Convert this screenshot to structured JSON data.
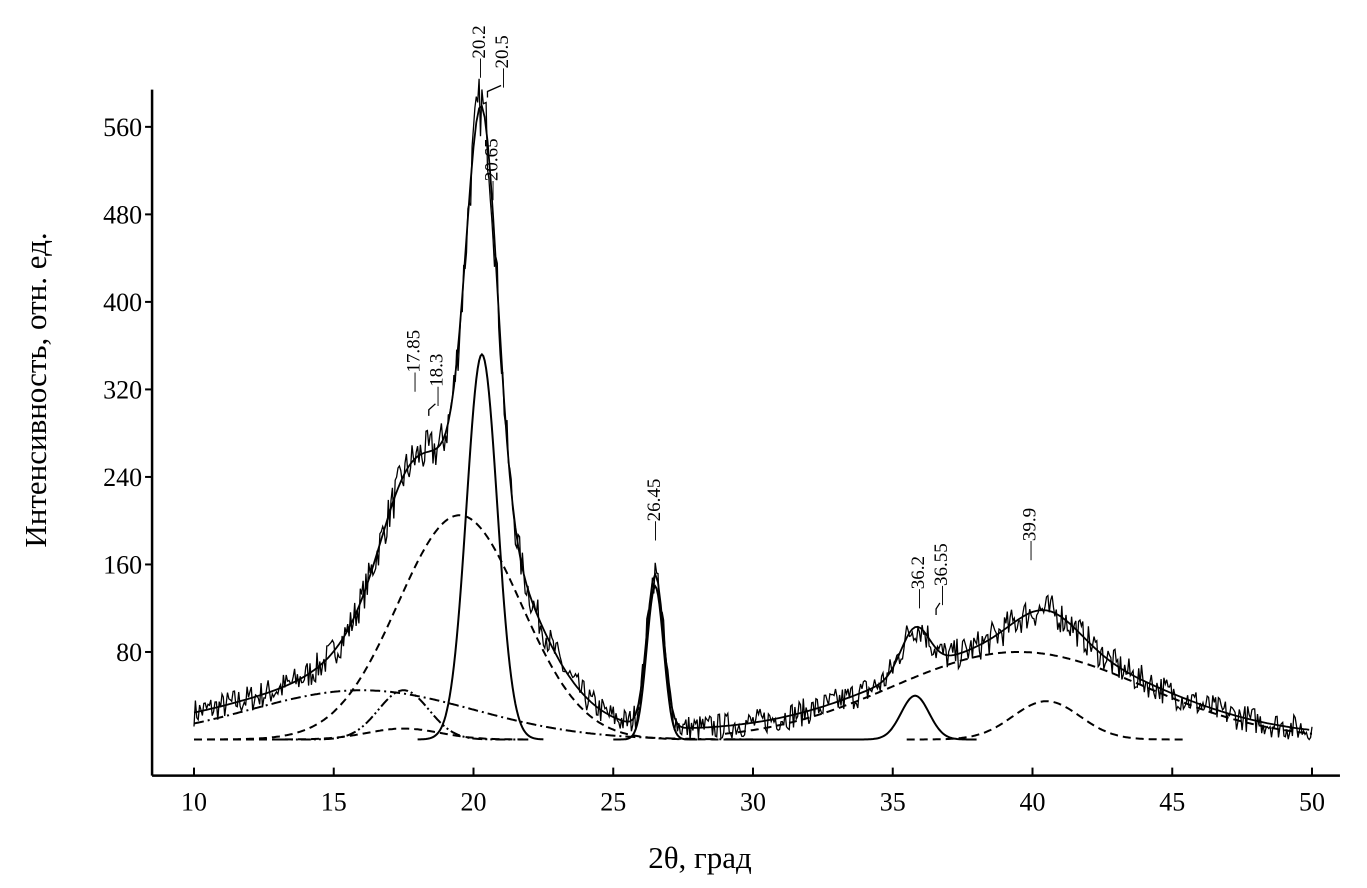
{
  "chart_data": {
    "type": "line",
    "title": "",
    "xlabel": "2θ, град",
    "ylabel": "Интенсивность, отн. ед.",
    "xlim": [
      8.5,
      51
    ],
    "ylim": [
      -33,
      594
    ],
    "xticks": [
      10,
      15,
      20,
      25,
      30,
      35,
      40,
      45,
      50
    ],
    "yticks": [
      80,
      160,
      240,
      320,
      400,
      480,
      560
    ],
    "grid": false,
    "baseline": 10,
    "components": [
      {
        "style": "dashed",
        "center": 19.5,
        "amplitude": 205,
        "sigma": 2.2,
        "range": [
          10,
          29
        ]
      },
      {
        "style": "solid",
        "center": 20.3,
        "amplitude": 352,
        "sigma": 0.55,
        "range": [
          18,
          22.5
        ]
      },
      {
        "style": "solid",
        "center": 26.5,
        "amplitude": 140,
        "sigma": 0.3,
        "range": [
          25,
          28
        ]
      },
      {
        "style": "dashdot",
        "center": 16,
        "amplitude": 45,
        "sigma": 4,
        "range": [
          10,
          30
        ]
      },
      {
        "style": "dashdotdot",
        "center": 17.5,
        "amplitude": 45,
        "sigma": 0.9,
        "range": [
          13,
          22
        ]
      },
      {
        "style": "dashed",
        "center": 17.5,
        "amplitude": 10,
        "sigma": 1.3,
        "range": [
          10,
          22
        ]
      },
      {
        "style": "solid",
        "center": 35.8,
        "amplitude": 40,
        "sigma": 0.5,
        "range": [
          29,
          38
        ]
      },
      {
        "style": "dashed",
        "center": 40.5,
        "amplitude": 35,
        "sigma": 1.2,
        "range": [
          35.5,
          45.5
        ]
      },
      {
        "style": "dashed",
        "center": 39.5,
        "amplitude": 80,
        "sigma": 4.5,
        "range": [
          29,
          50
        ]
      }
    ],
    "peak_labels": [
      {
        "text": "17.85",
        "x": 17.85,
        "y": 318
      },
      {
        "text": "18.3",
        "x": 18.4,
        "y": 305
      },
      {
        "text": "20.2",
        "x": 20.2,
        "y": 605
      },
      {
        "text": "20.5",
        "x": 20.5,
        "y": 596
      },
      {
        "text": "20.65",
        "x": 20.65,
        "y": 493
      },
      {
        "text": "26.45",
        "x": 26.45,
        "y": 182
      },
      {
        "text": "36.2",
        "x": 35.9,
        "y": 120
      },
      {
        "text": "36.55",
        "x": 36.55,
        "y": 123
      },
      {
        "text": "39.9",
        "x": 39.9,
        "y": 164
      }
    ]
  }
}
